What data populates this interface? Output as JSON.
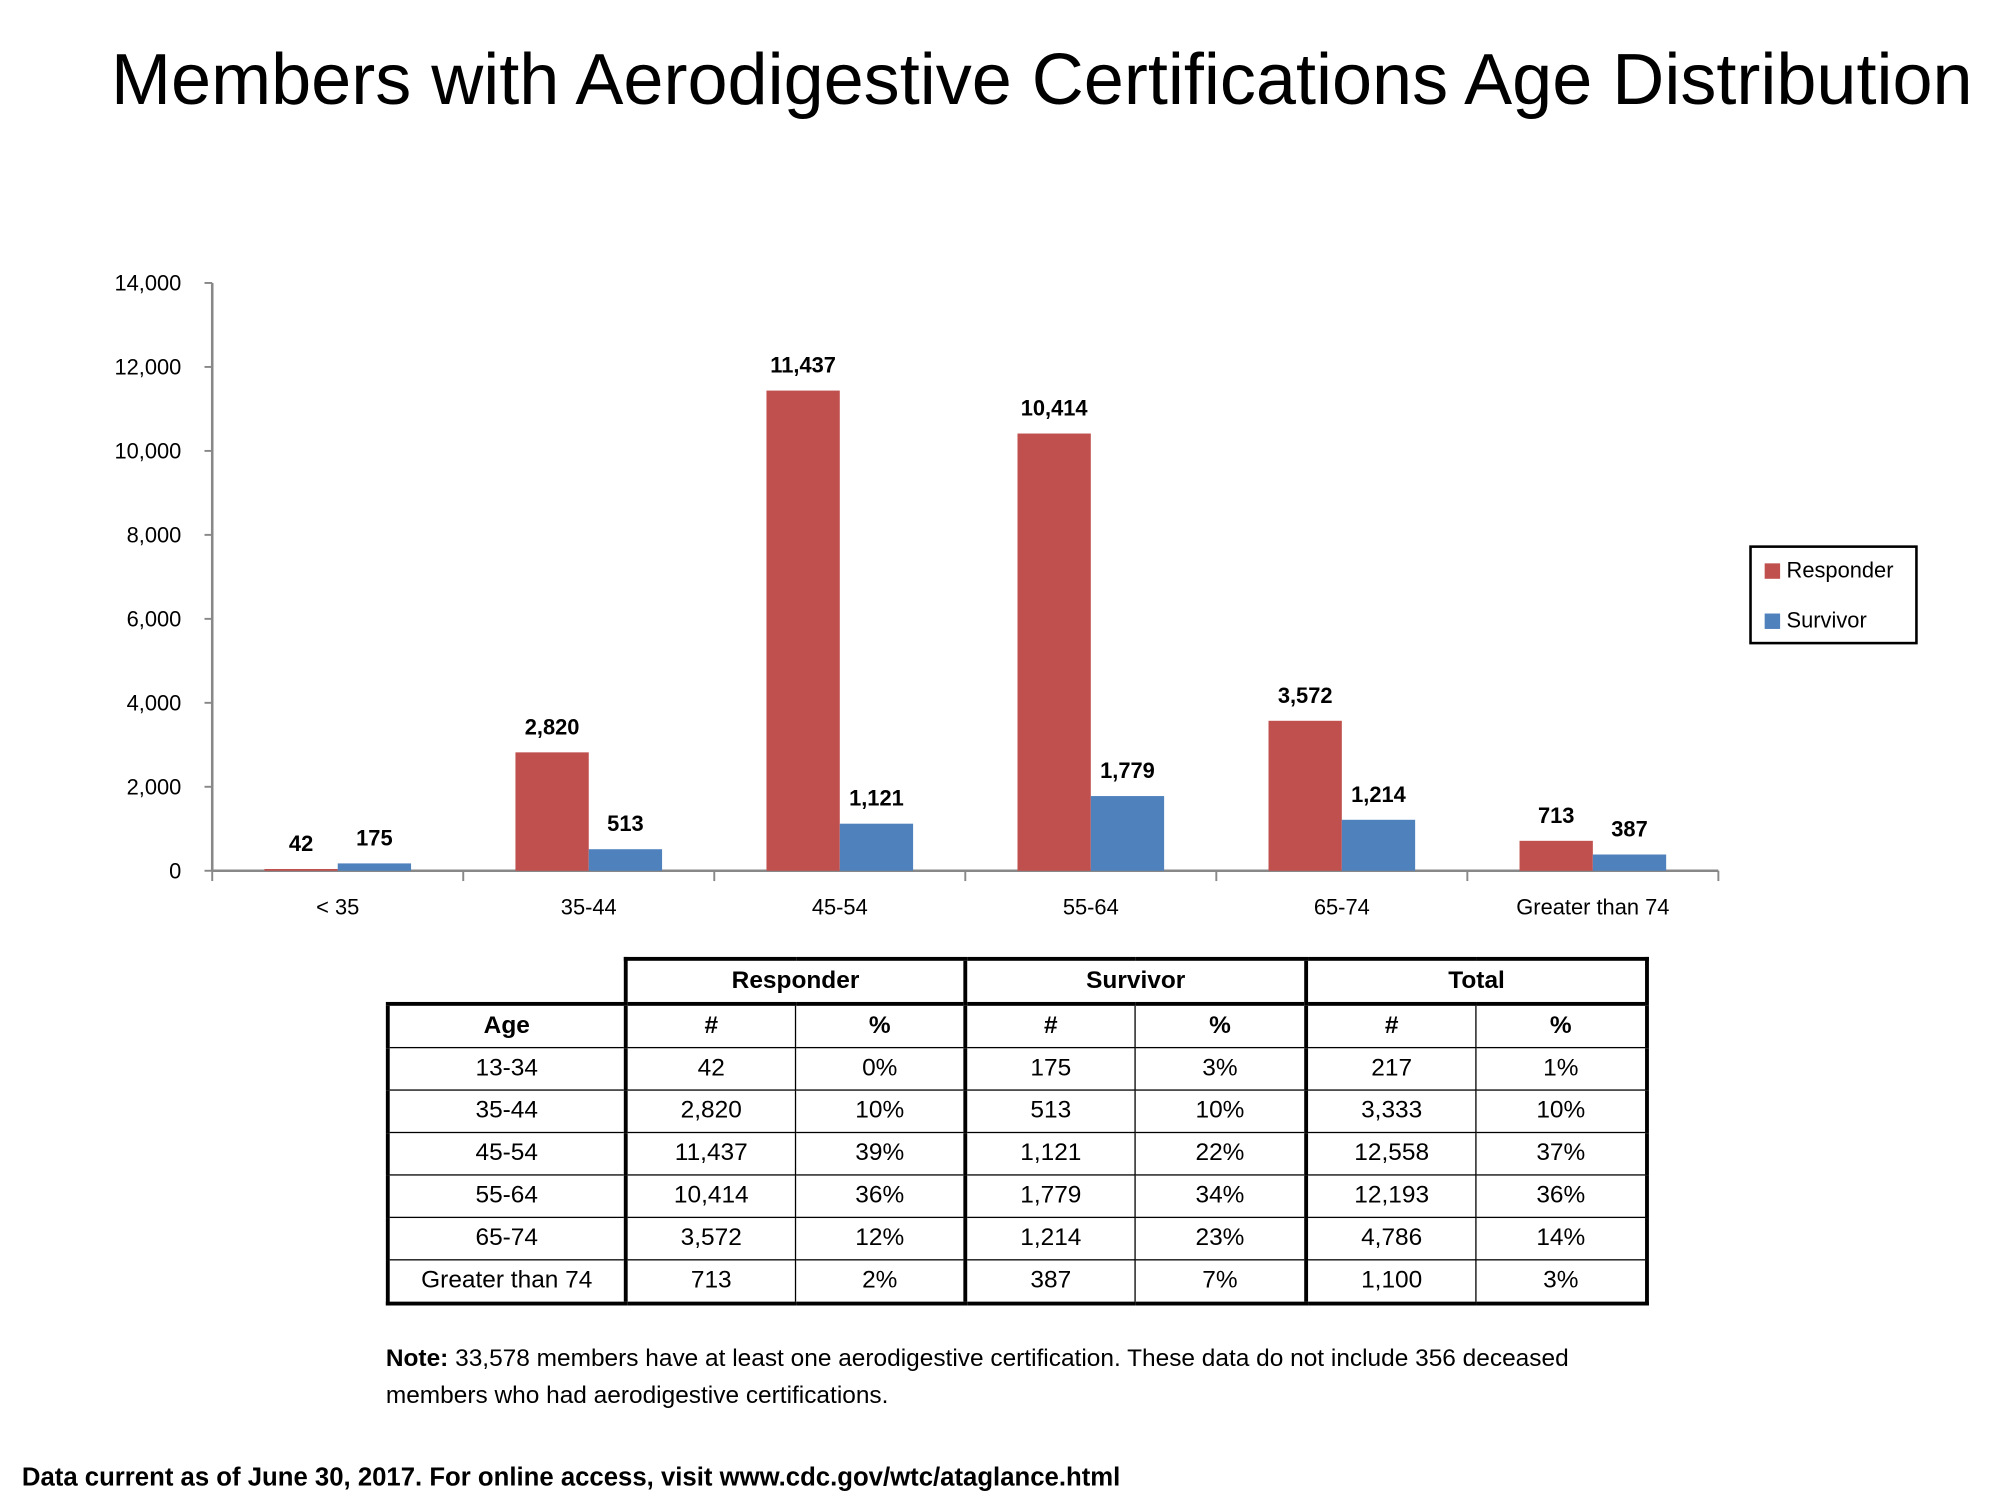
{
  "title": "Members with Aerodigestive Certifications Age Distribution",
  "chart_data": {
    "type": "bar",
    "title": "Members with Aerodigestive Certifications Age Distribution",
    "categories": [
      "< 35",
      "35-44",
      "45-54",
      "55-64",
      "65-74",
      "Greater than 74"
    ],
    "series": [
      {
        "name": "Responder",
        "color": "#C0504D",
        "values": [
          42,
          2820,
          11437,
          10414,
          3572,
          713
        ],
        "labels": [
          "42",
          "2,820",
          "11,437",
          "10,414",
          "3,572",
          "713"
        ]
      },
      {
        "name": "Survivor",
        "color": "#4F81BD",
        "values": [
          175,
          513,
          1121,
          1779,
          1214,
          387
        ],
        "labels": [
          "175",
          "513",
          "1,121",
          "1,779",
          "1,214",
          "387"
        ]
      }
    ],
    "ylim": [
      0,
      14000
    ],
    "yticks": [
      "0",
      "2,000",
      "4,000",
      "6,000",
      "8,000",
      "10,000",
      "12,000",
      "14,000"
    ],
    "xlabel": "",
    "ylabel": "",
    "grid": false,
    "legend": "right"
  },
  "table": {
    "groups": [
      "Responder",
      "Survivor",
      "Total"
    ],
    "subheaders": [
      "Age",
      "#",
      "%",
      "#",
      "%",
      "#",
      "%"
    ],
    "rows": [
      [
        "13-34",
        "42",
        "0%",
        "175",
        "3%",
        "217",
        "1%"
      ],
      [
        "35-44",
        "2,820",
        "10%",
        "513",
        "10%",
        "3,333",
        "10%"
      ],
      [
        "45-54",
        "11,437",
        "39%",
        "1,121",
        "22%",
        "12,558",
        "37%"
      ],
      [
        "55-64",
        "10,414",
        "36%",
        "1,779",
        "34%",
        "12,193",
        "36%"
      ],
      [
        "65-74",
        "3,572",
        "12%",
        "1,214",
        "23%",
        "4,786",
        "14%"
      ],
      [
        "Greater than 74",
        "713",
        "2%",
        "387",
        "7%",
        "1,100",
        "3%"
      ]
    ]
  },
  "note": {
    "label": "Note:",
    "text": " 33,578 members have at least one aerodigestive certification.  These data do not include 356 deceased members who had aerodigestive certifications."
  },
  "footer": "Data current as of June 30, 2017. For online access, visit www.cdc.gov/wtc/ataglance.html"
}
